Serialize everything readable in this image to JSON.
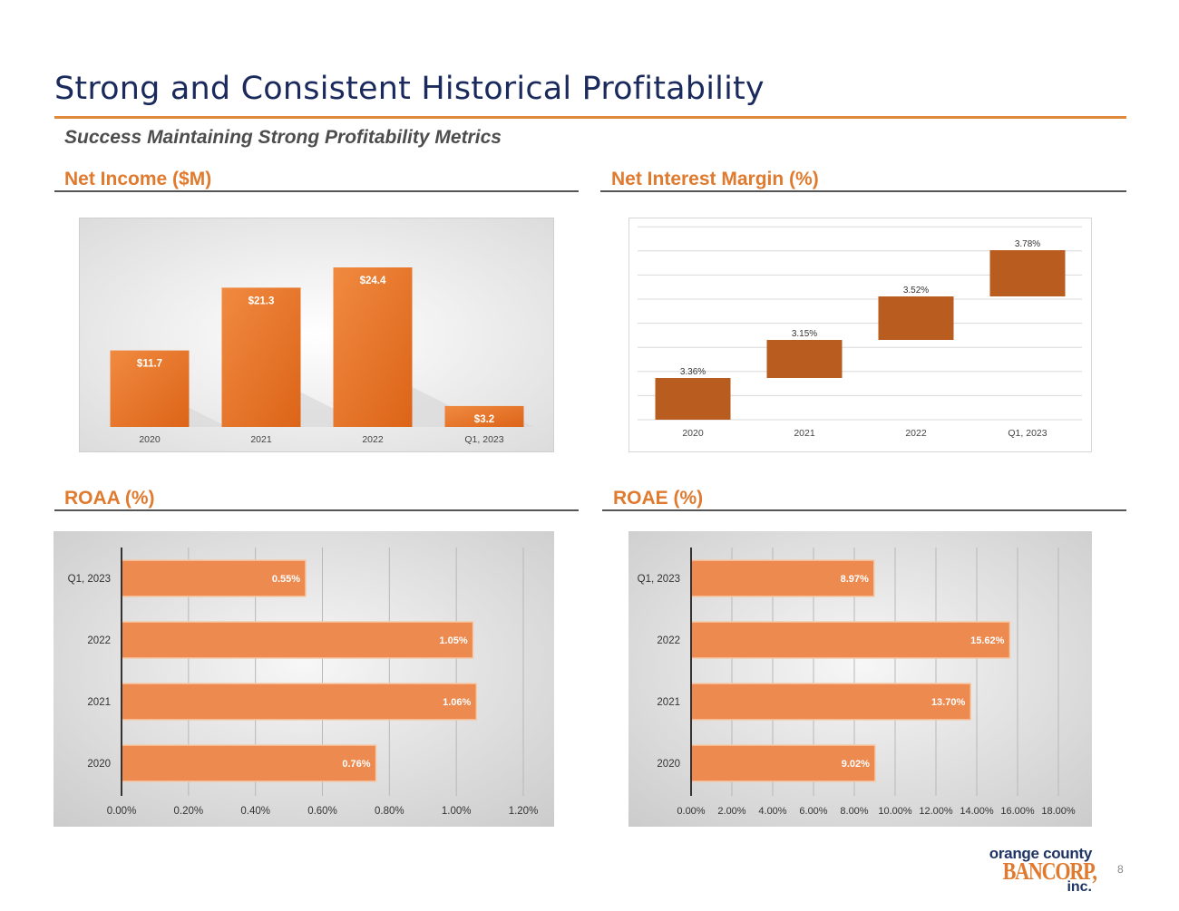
{
  "header": {
    "title": "Strong and Consistent Historical Profitability",
    "subtitle": "Success Maintaining Strong Profitability Metrics"
  },
  "sections": {
    "net_income": "Net Income ($M)",
    "nim": "Net Interest Margin (%)",
    "roaa": "ROAA (%)",
    "roae": "ROAE (%)"
  },
  "footer": {
    "page_number": "8",
    "logo_line1": "orange county",
    "logo_line2": "BANCORP,",
    "logo_line3": "inc."
  },
  "colors": {
    "accent": "#e07a2e",
    "navy": "#1b2a5c",
    "bar_dark": "#b85a1e",
    "bar_light": "#ec8a4f"
  },
  "chart_data": [
    {
      "id": "net_income",
      "type": "bar",
      "title": "Net Income ($M)",
      "categories": [
        "2020",
        "2021",
        "2022",
        "Q1, 2023"
      ],
      "values": [
        11.7,
        21.3,
        24.4,
        3.2
      ],
      "labels": [
        "$11.7",
        "$21.3",
        "$24.4",
        "$3.2"
      ],
      "ylim": [
        0,
        24.4
      ],
      "grid": false
    },
    {
      "id": "nim",
      "type": "bar",
      "subtype": "waterfall",
      "title": "Net Interest Margin (%)",
      "categories": [
        "2020",
        "2021",
        "2022",
        "Q1, 2023"
      ],
      "values": [
        3.36,
        3.15,
        3.52,
        3.78
      ],
      "labels": [
        "3.36%",
        "3.15%",
        "3.52%",
        "3.78%"
      ],
      "grid": true
    },
    {
      "id": "roaa",
      "type": "bar",
      "orientation": "horizontal",
      "title": "ROAA (%)",
      "categories": [
        "Q1, 2023",
        "2022",
        "2021",
        "2020"
      ],
      "values": [
        0.55,
        1.05,
        1.06,
        0.76
      ],
      "labels": [
        "0.55%",
        "1.05%",
        "1.06%",
        "0.76%"
      ],
      "xticks": [
        "0.00%",
        "0.20%",
        "0.40%",
        "0.60%",
        "0.80%",
        "1.00%",
        "1.20%"
      ],
      "xlim": [
        0,
        1.2
      ],
      "grid": true
    },
    {
      "id": "roae",
      "type": "bar",
      "orientation": "horizontal",
      "title": "ROAE (%)",
      "categories": [
        "Q1, 2023",
        "2022",
        "2021",
        "2020"
      ],
      "values": [
        8.97,
        15.62,
        13.7,
        9.02
      ],
      "labels": [
        "8.97%",
        "15.62%",
        "13.70%",
        "9.02%"
      ],
      "xticks": [
        "0.00%",
        "2.00%",
        "4.00%",
        "6.00%",
        "8.00%",
        "10.00%",
        "12.00%",
        "14.00%",
        "16.00%",
        "18.00%"
      ],
      "xlim": [
        0,
        18
      ],
      "grid": true
    }
  ]
}
